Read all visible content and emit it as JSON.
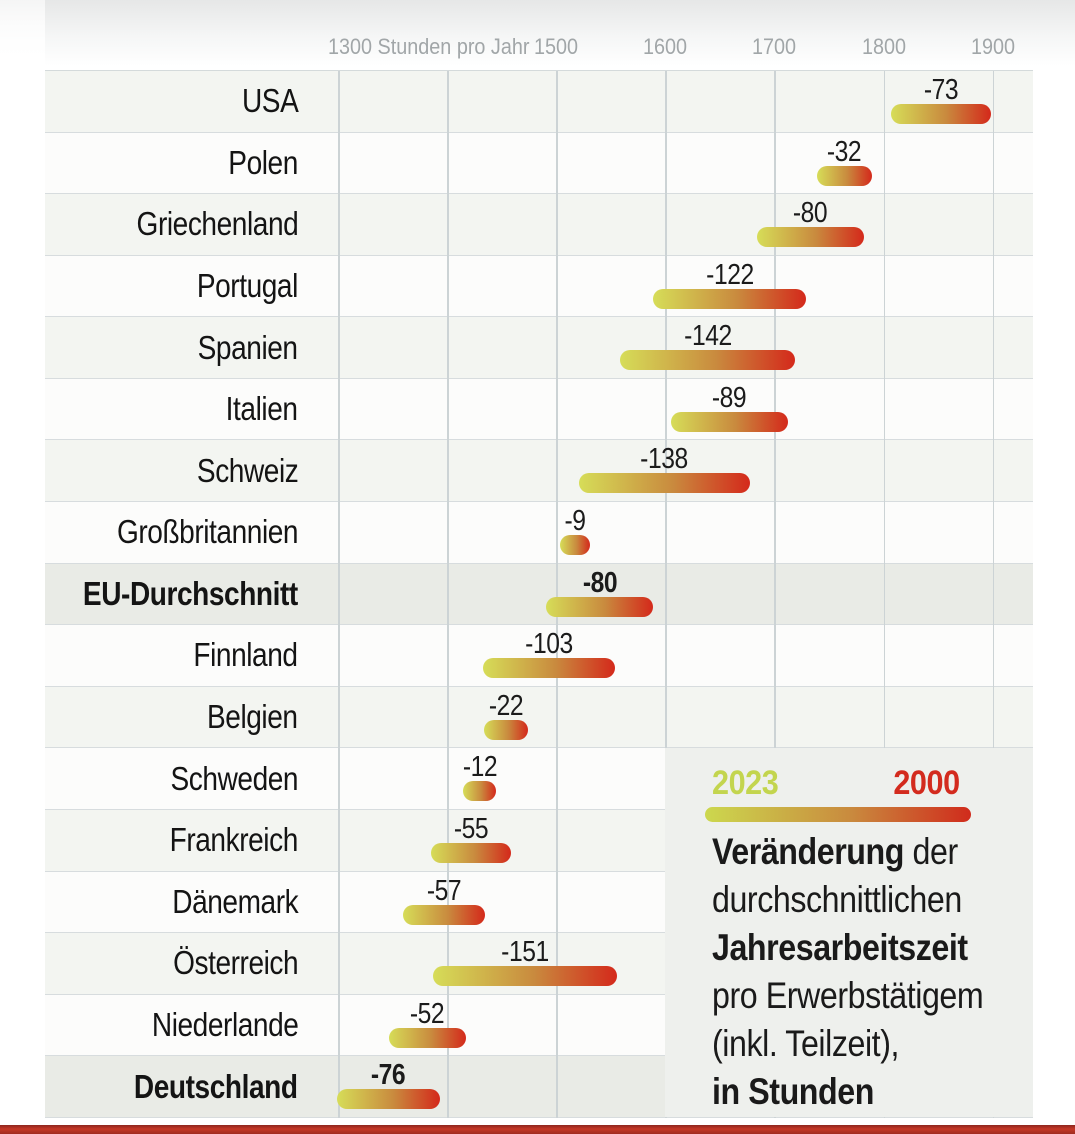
{
  "axis": {
    "start_label": "1300 Stunden pro Jahr",
    "start_value": 1300,
    "unit": "Stunden pro Jahr",
    "ticks": [
      {
        "value": 1500,
        "label": "1500"
      },
      {
        "value": 1600,
        "label": "1600"
      },
      {
        "value": 1700,
        "label": "1700"
      },
      {
        "value": 1800,
        "label": "1800"
      },
      {
        "value": 1900,
        "label": "1900"
      }
    ]
  },
  "chart_data": {
    "type": "bar",
    "subtype": "range-dumbbell",
    "title": "Veränderung der durchschnittlichen Jahresarbeitszeit pro Erwerbstätigem (inkl. Teilzeit), in Stunden",
    "xlabel": "Stunden pro Jahr",
    "x_domain": [
      1300,
      1937
    ],
    "gridlines": [
      1300,
      1400,
      1500,
      1600,
      1700,
      1800,
      1900
    ],
    "series_meaning": {
      "bar_start_color_year": "2023",
      "bar_end_color_year": "2000"
    },
    "colors": {
      "start_2023": "#d6dd58",
      "end_2000": "#d4291b",
      "highlight_row": "#e9ebe6",
      "shade_row": "#f3f5f1",
      "plain_row": "#fcfcfb",
      "accent_banner": "#c53726"
    },
    "rows": [
      {
        "label": "USA",
        "v2023": 1816,
        "v2000": 1889,
        "change": "-73",
        "emphasis": false
      },
      {
        "label": "Polen",
        "v2023": 1748,
        "v2000": 1780,
        "change": "-32",
        "emphasis": false
      },
      {
        "label": "Griechenland",
        "v2023": 1693,
        "v2000": 1773,
        "change": "-80",
        "emphasis": false
      },
      {
        "label": "Portugal",
        "v2023": 1598,
        "v2000": 1720,
        "change": "-122",
        "emphasis": false
      },
      {
        "label": "Spanien",
        "v2023": 1568,
        "v2000": 1710,
        "change": "-142",
        "emphasis": false
      },
      {
        "label": "Italien",
        "v2023": 1614,
        "v2000": 1703,
        "change": "-89",
        "emphasis": false
      },
      {
        "label": "Schweiz",
        "v2023": 1530,
        "v2000": 1668,
        "change": "-138",
        "emphasis": false
      },
      {
        "label": "Großbritannien",
        "v2023": 1513,
        "v2000": 1522,
        "change": "-9",
        "emphasis": false
      },
      {
        "label": "EU-Durchschnitt",
        "v2023": 1500,
        "v2000": 1580,
        "change": "-80",
        "emphasis": true
      },
      {
        "label": "Finnland",
        "v2023": 1442,
        "v2000": 1545,
        "change": "-103",
        "emphasis": false
      },
      {
        "label": "Belgien",
        "v2023": 1443,
        "v2000": 1465,
        "change": "-22",
        "emphasis": false
      },
      {
        "label": "Schweden",
        "v2023": 1424,
        "v2000": 1436,
        "change": "-12",
        "emphasis": false
      },
      {
        "label": "Frankreich",
        "v2023": 1394,
        "v2000": 1449,
        "change": "-55",
        "emphasis": false
      },
      {
        "label": "Dänemark",
        "v2023": 1369,
        "v2000": 1426,
        "change": "-57",
        "emphasis": false
      },
      {
        "label": "Österreich",
        "v2023": 1396,
        "v2000": 1547,
        "change": "-151",
        "emphasis": false
      },
      {
        "label": "Niederlande",
        "v2023": 1356,
        "v2000": 1408,
        "change": "-52",
        "emphasis": false
      },
      {
        "label": "Deutschland",
        "v2023": 1308,
        "v2000": 1384,
        "change": "-76",
        "emphasis": true
      }
    ]
  },
  "legend": {
    "year_start": "2023",
    "year_end": "2000",
    "year_start_color": "#c3d54e",
    "year_end_color": "#d32b1e",
    "caption_lines": [
      [
        {
          "text": "Veränderung",
          "bold": true
        },
        {
          "text": " der",
          "bold": false
        }
      ],
      [
        {
          "text": "durchschnittlichen",
          "bold": false
        }
      ],
      [
        {
          "text": "Jahresarbeitszeit",
          "bold": true
        }
      ],
      [
        {
          "text": "pro Erwerbstätigem",
          "bold": false
        }
      ],
      [
        {
          "text": "(inkl. Teilzeit),",
          "bold": false
        }
      ],
      [
        {
          "text": "in Stunden",
          "bold": true
        }
      ]
    ]
  }
}
